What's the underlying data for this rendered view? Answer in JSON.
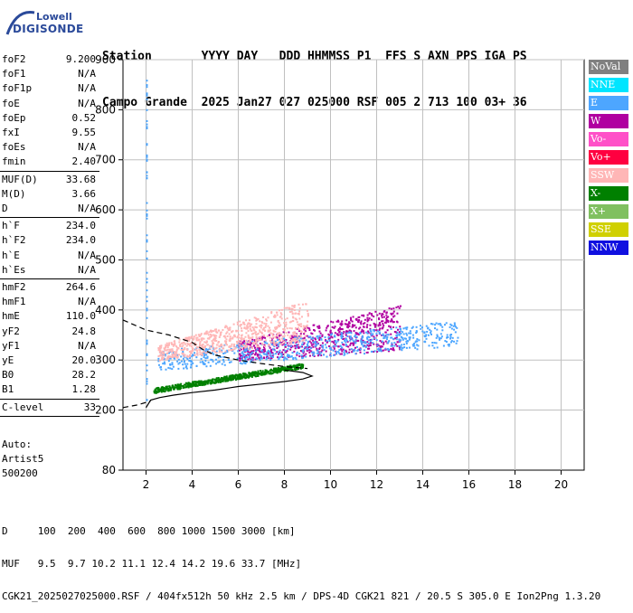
{
  "logo": {
    "line1": "Lowell",
    "line2": "DIGISONDE"
  },
  "header": {
    "labels_row": "Station       YYYY DAY   DDD HHMMSS P1  FFS S AXN PPS IGA PS",
    "values_row": "Campo Grande  2025 Jan27 027 025000 RSF 005 2 713 100 03+ 36"
  },
  "params": [
    {
      "label": "foF2",
      "value": "9.200"
    },
    {
      "label": "foF1",
      "value": "N/A"
    },
    {
      "label": "foF1p",
      "value": "N/A"
    },
    {
      "label": "foE",
      "value": "N/A"
    },
    {
      "label": "foEp",
      "value": "0.52"
    },
    {
      "label": "fxI",
      "value": "9.55"
    },
    {
      "label": "foEs",
      "value": "N/A"
    },
    {
      "label": "fmin",
      "value": "2.40"
    },
    {
      "label": "MUF(D)",
      "value": "33.68"
    },
    {
      "label": "M(D)",
      "value": "3.66"
    },
    {
      "label": "D",
      "value": "N/A"
    },
    {
      "label": "h`F",
      "value": "234.0"
    },
    {
      "label": "h`F2",
      "value": "234.0"
    },
    {
      "label": "h`E",
      "value": "N/A"
    },
    {
      "label": "h`Es",
      "value": "N/A"
    },
    {
      "label": "hmF2",
      "value": "264.6"
    },
    {
      "label": "hmF1",
      "value": "N/A"
    },
    {
      "label": "hmE",
      "value": "110.0"
    },
    {
      "label": "yF2",
      "value": "24.8"
    },
    {
      "label": "yF1",
      "value": "N/A"
    },
    {
      "label": "yE",
      "value": "20.0"
    },
    {
      "label": "B0",
      "value": "28.2"
    },
    {
      "label": "B1",
      "value": "1.28"
    },
    {
      "label": "C-level",
      "value": "33"
    }
  ],
  "auto": {
    "line1": "Auto:",
    "line2": "Artist5",
    "line3": "500200"
  },
  "legend": [
    {
      "label": "NoVal",
      "color": "#808080"
    },
    {
      "label": "NNE",
      "color": "#00e5ff"
    },
    {
      "label": "E",
      "color": "#4da6ff"
    },
    {
      "label": "W",
      "color": "#b000a0"
    },
    {
      "label": "Vo-",
      "color": "#ff50c8"
    },
    {
      "label": "Vo+",
      "color": "#ff0040"
    },
    {
      "label": "SSW",
      "color": "#ffb6b6"
    },
    {
      "label": "X-",
      "color": "#008000"
    },
    {
      "label": "X+",
      "color": "#80c060"
    },
    {
      "label": "SSE",
      "color": "#d0d000"
    },
    {
      "label": "NNW",
      "color": "#1010e0"
    }
  ],
  "chart_data": {
    "type": "scatter",
    "title": "",
    "xlabel": "",
    "ylabel": "",
    "xlim": [
      1,
      21
    ],
    "ylim": [
      80,
      900
    ],
    "x_ticks": [
      2,
      4,
      6,
      8,
      10,
      12,
      14,
      16,
      18,
      20
    ],
    "y_ticks": [
      80,
      200,
      300,
      400,
      500,
      600,
      700,
      800,
      900
    ],
    "grid": true,
    "legend_placement": "right",
    "bands": [
      {
        "name": "W",
        "x": [
          6,
          13
        ],
        "y_low": [
          300,
          320
        ],
        "y_high": [
          340,
          410
        ]
      },
      {
        "name": "E",
        "x": [
          2.5,
          15.5
        ],
        "y_low": [
          280,
          330
        ],
        "y_high": [
          320,
          380
        ]
      },
      {
        "name": "SSW",
        "x": [
          2.5,
          9
        ],
        "y_low": [
          300,
          340
        ],
        "y_high": [
          330,
          420
        ]
      },
      {
        "name": "X-",
        "x": [
          2.3,
          8.8
        ],
        "y_low": [
          235,
          285
        ],
        "y_high": [
          245,
          295
        ]
      }
    ],
    "profile_curve": {
      "x": [
        2.0,
        2.2,
        2.6,
        3.2,
        4.0,
        5.0,
        6.0,
        7.0,
        8.0,
        8.8,
        9.2,
        8.8,
        8.0
      ],
      "y": [
        205,
        220,
        225,
        230,
        235,
        240,
        247,
        252,
        257,
        262,
        268,
        275,
        280
      ]
    },
    "dashed_curve": {
      "x": [
        1.0,
        2.0,
        3.0,
        4.0,
        4.5,
        5.0,
        6.0,
        7.0,
        8.0,
        9.0
      ],
      "y": [
        380,
        360,
        350,
        335,
        320,
        310,
        300,
        293,
        287,
        283
      ]
    },
    "dashed_lower": {
      "x": [
        1.0,
        1.6,
        2.2
      ],
      "y": [
        205,
        210,
        218
      ]
    }
  },
  "footer": {
    "line1": "D     100  200  400  600  800 1000 1500 3000 [km]",
    "line2": "MUF   9.5  9.7 10.2 11.1 12.4 14.2 19.6 33.7 [MHz]",
    "line3": "CGK21_2025027025000.RSF / 404fx512h 50 kHz 2.5 km / DPS-4D CGK21 821 / 20.5 S 305.0 E Ion2Png 1.3.20"
  }
}
